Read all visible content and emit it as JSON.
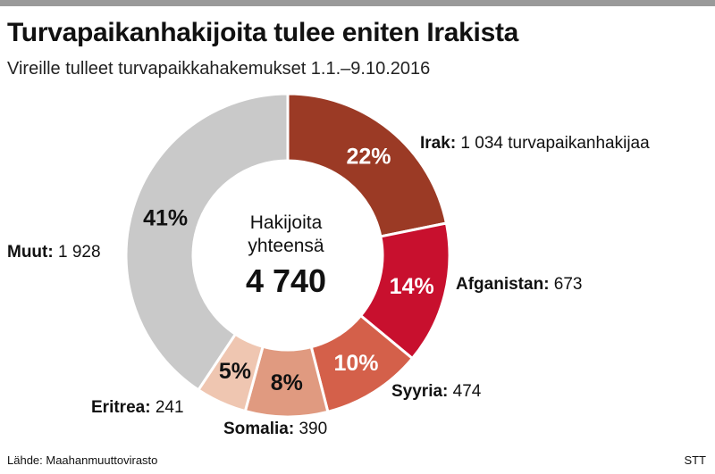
{
  "header": {
    "title": "Turvapaikanhakijoita tulee eniten Irakista",
    "subtitle": "Vireille tulleet turvapaikkahakemukset 1.1.–9.10.2016"
  },
  "center": {
    "line1": "Hakijoita",
    "line2": "yhteensä",
    "total": "4 740"
  },
  "footer": {
    "source": "Lähde: Maahanmuuttovirasto",
    "agency": "STT"
  },
  "chart_data": {
    "type": "pie",
    "variant": "donut",
    "title": "Turvapaikanhakijoita tulee eniten Irakista",
    "subtitle": "Vireille tulleet turvapaikkahakemukset 1.1.–9.10.2016",
    "total": 4740,
    "slices": [
      {
        "name": "Irak",
        "value": 1034,
        "percent_label": "22%",
        "value_text": "1 034 turvapaikanhakijaa",
        "color": "#9b3a25",
        "text_color": "#ffffff"
      },
      {
        "name": "Afganistan",
        "value": 673,
        "percent_label": "14%",
        "value_text": "673",
        "color": "#c8102e",
        "text_color": "#ffffff"
      },
      {
        "name": "Syyria",
        "value": 474,
        "percent_label": "10%",
        "value_text": "474",
        "color": "#d4604a",
        "text_color": "#ffffff"
      },
      {
        "name": "Somalia",
        "value": 390,
        "percent_label": "8%",
        "value_text": "390",
        "color": "#e09a80",
        "text_color": "#111111"
      },
      {
        "name": "Eritrea",
        "value": 241,
        "percent_label": "5%",
        "value_text": "241",
        "color": "#efc6b1",
        "text_color": "#111111"
      },
      {
        "name": "Muut",
        "value": 1928,
        "percent_label": "41%",
        "value_text": "1 928",
        "color": "#c9c9c9",
        "text_color": "#111111"
      }
    ]
  }
}
